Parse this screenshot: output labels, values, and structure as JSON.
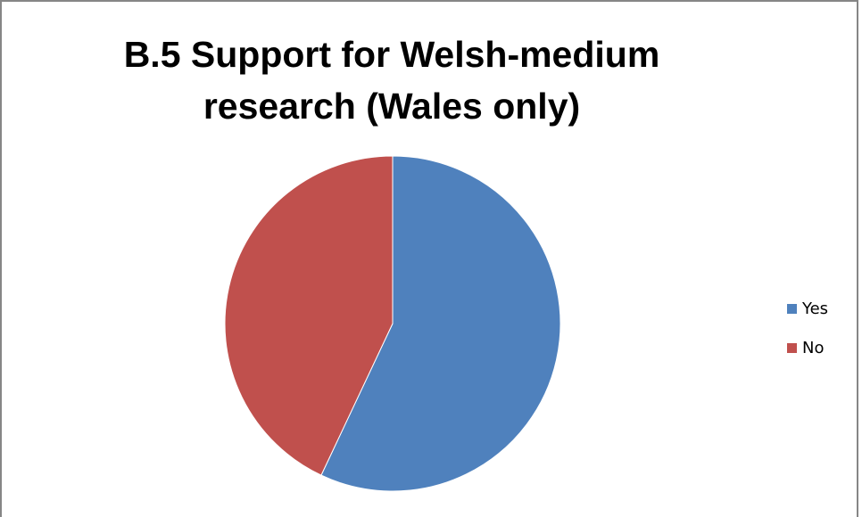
{
  "chart_data": {
    "type": "pie",
    "title_lines": [
      "B.5 Support for Welsh-medium",
      "research (Wales only)"
    ],
    "slices": [
      {
        "label": "Yes",
        "value": 57,
        "color": "#4f81bd"
      },
      {
        "label": "No",
        "value": 43,
        "color": "#c0504d"
      }
    ],
    "legend_position": "right"
  }
}
